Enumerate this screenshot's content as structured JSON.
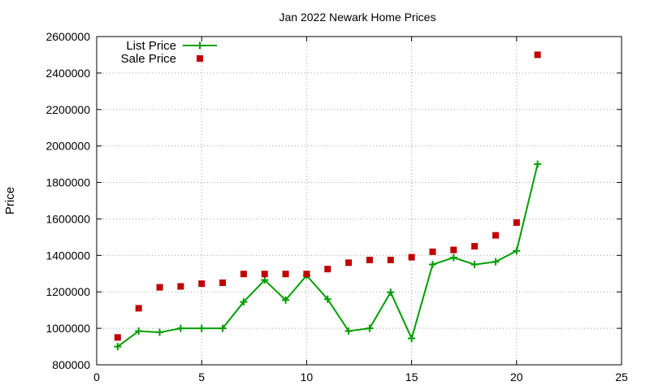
{
  "chart_data": {
    "type": "line",
    "title": "Jan 2022 Newark Home Prices",
    "xlabel": "",
    "ylabel": "Price",
    "xlim": [
      0,
      25
    ],
    "ylim": [
      800000,
      2600000
    ],
    "x_ticks": [
      0,
      5,
      10,
      15,
      20,
      25
    ],
    "y_ticks": [
      800000,
      1000000,
      1200000,
      1400000,
      1600000,
      1800000,
      2000000,
      2200000,
      2400000,
      2600000
    ],
    "grid": true,
    "legend_position": "top-left",
    "series": [
      {
        "name": "List Price",
        "style": "linespoints",
        "color": "#009e00",
        "marker": "plus",
        "x": [
          1,
          2,
          3,
          4,
          5,
          6,
          7,
          8,
          9,
          10,
          11,
          12,
          13,
          14,
          15,
          16,
          17,
          18,
          19,
          20,
          21
        ],
        "y": [
          900000,
          985000,
          978000,
          1000000,
          1000000,
          1000000,
          1145000,
          1265000,
          1155000,
          1290000,
          1160000,
          985000,
          1000000,
          1198000,
          945000,
          1350000,
          1388000,
          1350000,
          1365000,
          1425000,
          1900000
        ]
      },
      {
        "name": "Sale Price",
        "style": "points",
        "color": "#c00000",
        "marker": "square",
        "x": [
          1,
          2,
          3,
          4,
          5,
          6,
          7,
          8,
          9,
          10,
          11,
          12,
          13,
          14,
          15,
          16,
          17,
          18,
          19,
          20,
          21
        ],
        "y": [
          950000,
          1110000,
          1225000,
          1230000,
          1245000,
          1250000,
          1298000,
          1298000,
          1298000,
          1298000,
          1325000,
          1360000,
          1375000,
          1375000,
          1390000,
          1420000,
          1430000,
          1450000,
          1510000,
          1580000,
          2500000
        ]
      }
    ]
  }
}
